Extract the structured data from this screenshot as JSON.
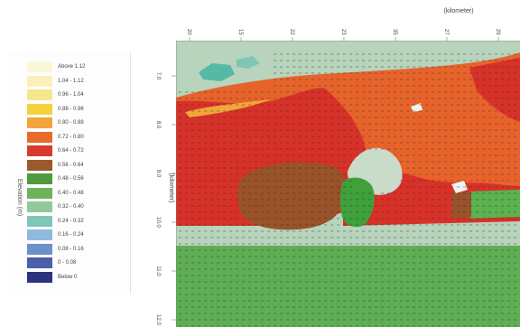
{
  "legend": {
    "title": "Elevation (m)",
    "entries": [
      {
        "label": "Above 1.12",
        "color": "#fbf8d9"
      },
      {
        "label": "1.04 - 1.12",
        "color": "#f9f1b9"
      },
      {
        "label": "0.96 - 1.04",
        "color": "#f7e68b"
      },
      {
        "label": "0.88 - 0.96",
        "color": "#f5d23c"
      },
      {
        "label": "0.80 - 0.88",
        "color": "#f2a53a"
      },
      {
        "label": "0.72 - 0.80",
        "color": "#e96a2f"
      },
      {
        "label": "0.64 - 0.72",
        "color": "#d63b2d"
      },
      {
        "label": "0.56 - 0.64",
        "color": "#9a5a2c"
      },
      {
        "label": "0.48 - 0.56",
        "color": "#4f9a3c"
      },
      {
        "label": "0.40 - 0.48",
        "color": "#6cb35b"
      },
      {
        "label": "0.32 - 0.40",
        "color": "#93c99a"
      },
      {
        "label": "0.24 - 0.32",
        "color": "#7fc6b4"
      },
      {
        "label": "0.16 - 0.24",
        "color": "#8fb9dd"
      },
      {
        "label": "0.08 - 0.16",
        "color": "#6d8fcb"
      },
      {
        "label": "0 - 0.08",
        "color": "#4c5fa8"
      },
      {
        "label": "Below 0",
        "color": "#2d327e"
      }
    ]
  },
  "chart_data": {
    "type": "heatmap",
    "xlabel": "(kilometer)",
    "ylabel": "(kilometer)",
    "x_ticks": [
      "20",
      "15",
      "22",
      "23",
      "35",
      "27",
      "29"
    ],
    "y_ticks": [
      "7.0",
      "8.0",
      "9.0",
      "10.0",
      "11.0",
      "12.0"
    ],
    "grid": false,
    "legend_position": "left",
    "colors": {
      "background": "#b8d4bd",
      "orange": "#e8632b",
      "red": "#d8312a",
      "brown": "#9a522a",
      "green_dark": "#3fa03c",
      "green": "#6ab55e",
      "teal": "#55b9a6",
      "arrow": "#1a3b1a"
    }
  }
}
